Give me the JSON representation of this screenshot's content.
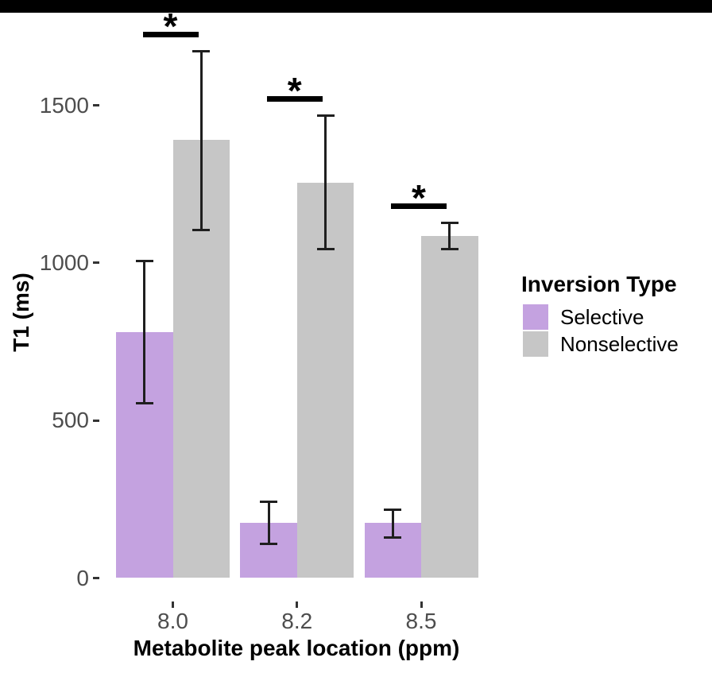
{
  "window": {
    "top_bar_color": "#000000"
  },
  "chart_data": {
    "type": "bar",
    "title": "",
    "xlabel": "Metabolite peak location (ppm)",
    "ylabel": "T1 (ms)",
    "categories": [
      "8.0",
      "8.2",
      "8.5"
    ],
    "series": [
      {
        "name": "Selective",
        "color": "#c4a2e0",
        "values": [
          780,
          175,
          175
        ],
        "err_low": [
          550,
          105,
          125
        ],
        "err_high": [
          1010,
          245,
          220
        ]
      },
      {
        "name": "Nonselective",
        "color": "#c6c6c6",
        "values": [
          1390,
          1255,
          1085
        ],
        "err_low": [
          1100,
          1040,
          1040
        ],
        "err_high": [
          1675,
          1470,
          1130
        ]
      }
    ],
    "y_ticks": [
      0,
      500,
      1000,
      1500
    ],
    "ylim": [
      0,
      1780
    ],
    "grid": false,
    "legend_position": "right",
    "legend_title": "Inversion Type",
    "significance": [
      {
        "category": "8.0",
        "label": "*"
      },
      {
        "category": "8.2",
        "label": "*"
      },
      {
        "category": "8.5",
        "label": "*"
      }
    ],
    "errorbar_color": "#1f1f1f"
  }
}
